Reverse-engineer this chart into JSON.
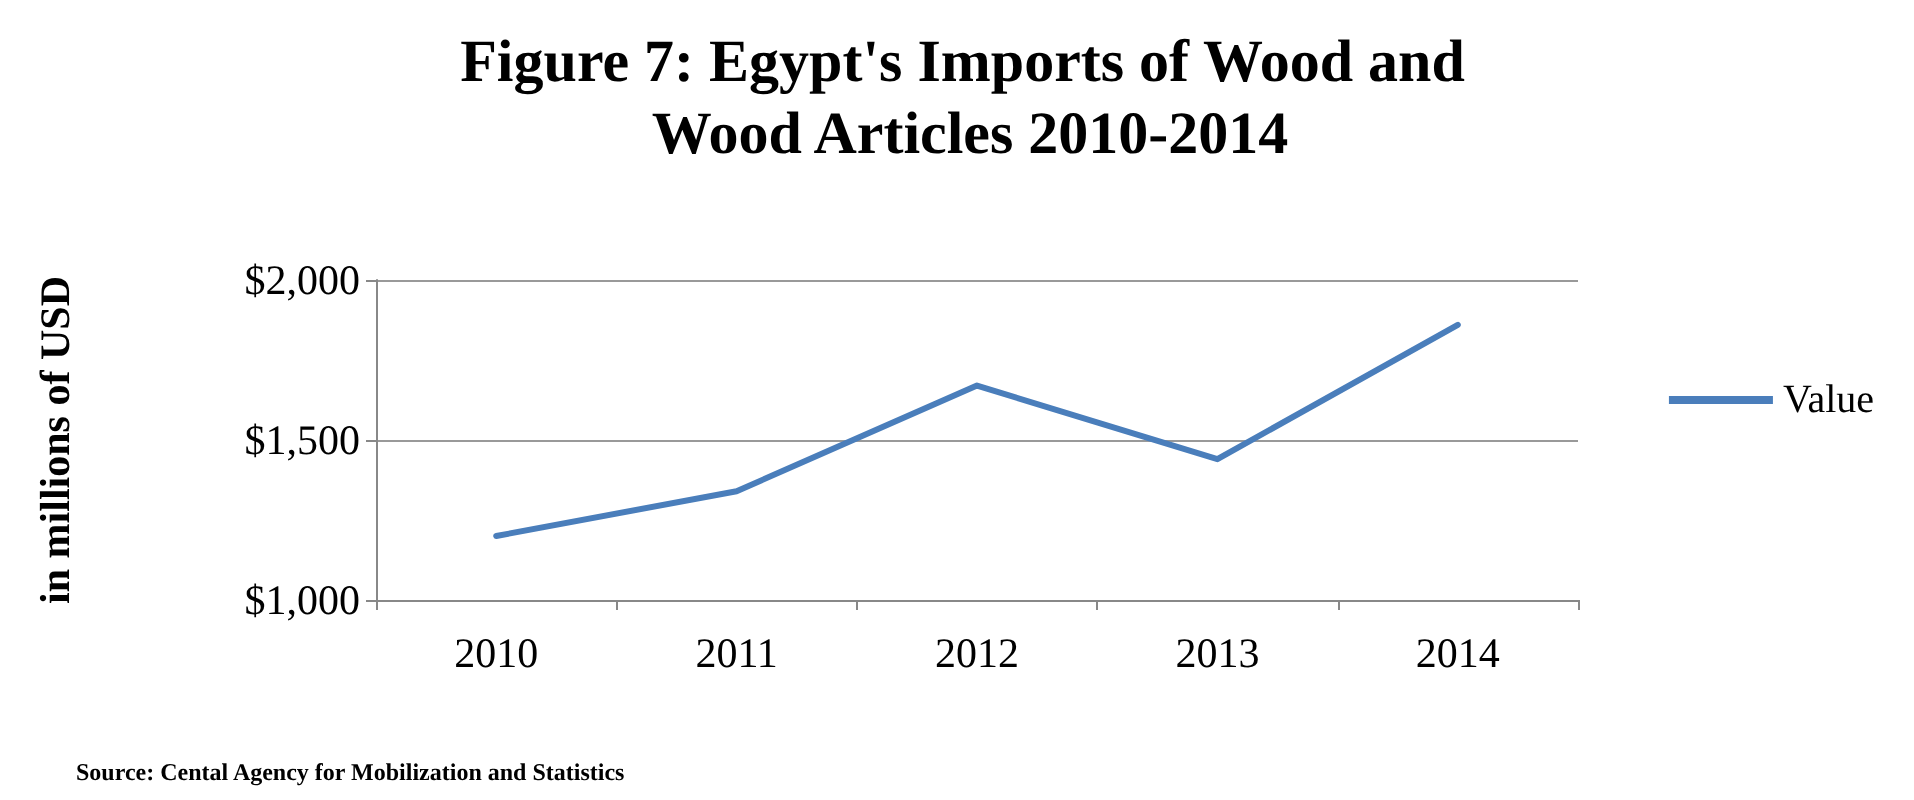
{
  "chart_data": {
    "type": "line",
    "title": "Figure 7: Egypt's Imports of Wood and Wood Articles 2010-2014",
    "ylabel": "in millions of USD",
    "categories": [
      "2010",
      "2011",
      "2012",
      "2013",
      "2014"
    ],
    "series": [
      {
        "name": "Value",
        "color": "#4a7ebb",
        "values": [
          1200,
          1340,
          1670,
          1440,
          1860
        ]
      }
    ],
    "ylim": [
      1000,
      2000
    ],
    "yticks": [
      {
        "value": 1000,
        "label": "$1,000"
      },
      {
        "value": 1500,
        "label": "$1,500"
      },
      {
        "value": 2000,
        "label": "$2,000"
      }
    ],
    "grid": "y",
    "legend": "right",
    "marker": "none",
    "annotations": [
      "Source: Cental Agency for Mobilization and Statistics"
    ]
  }
}
